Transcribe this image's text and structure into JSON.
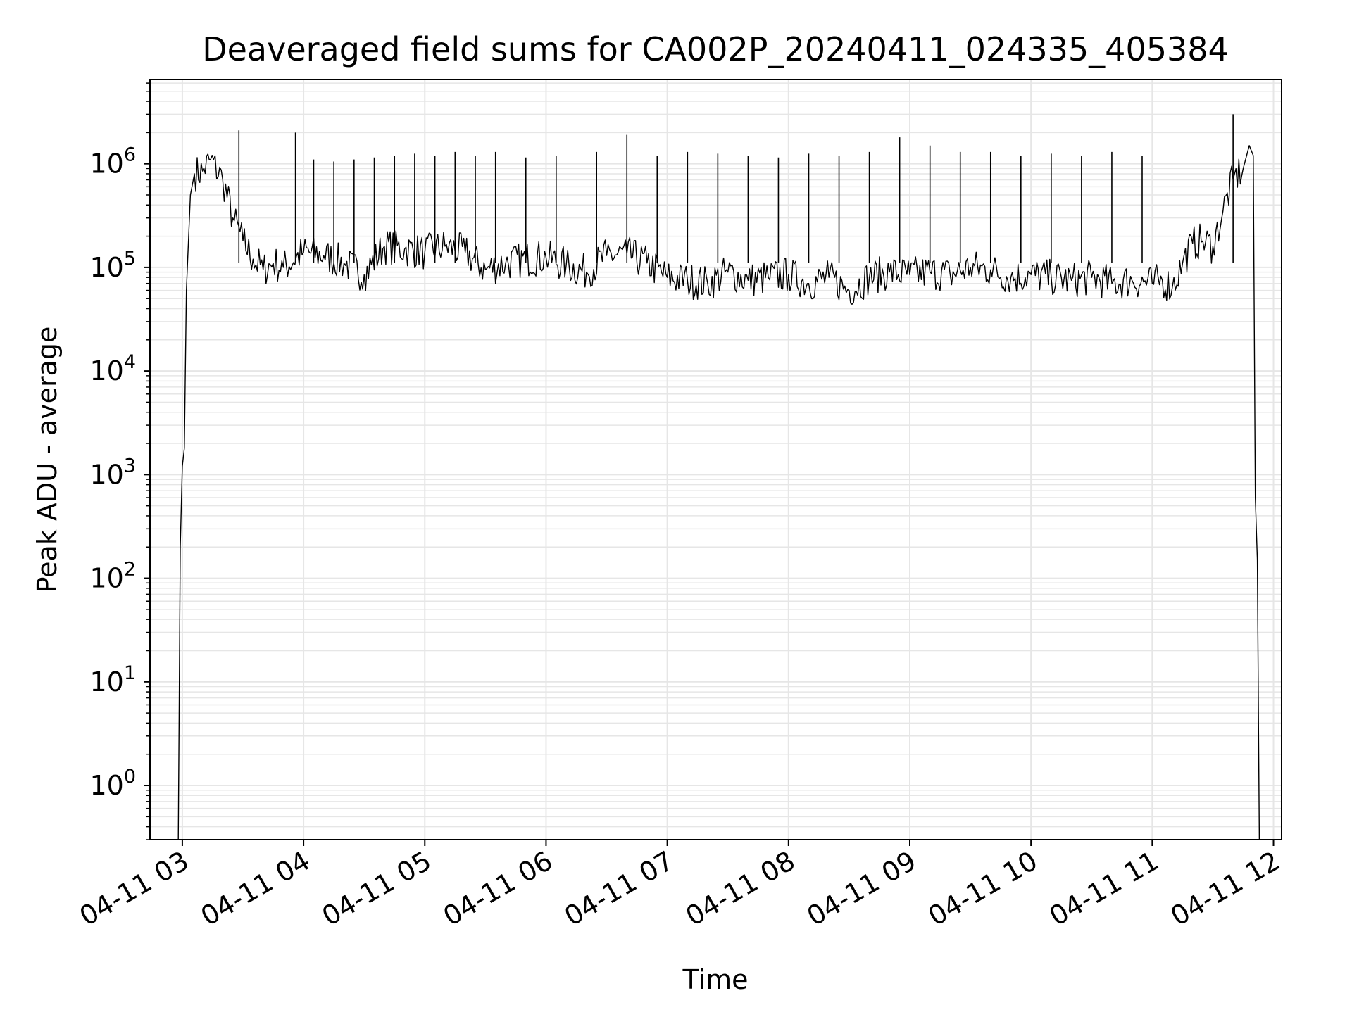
{
  "chart_data": {
    "type": "line",
    "title": "Deaveraged field sums for CA002P_20240411_024335_405384",
    "xlabel": "Time",
    "ylabel": "Peak ADU - average",
    "yscale": "log",
    "ylim": [
      0.3,
      6500000
    ],
    "xlim": [
      "2024-04-11 02:44",
      "2024-04-11 12:04"
    ],
    "grid": true,
    "x_tick_labels": [
      "04-11 03",
      "04-11 04",
      "04-11 05",
      "04-11 06",
      "04-11 07",
      "04-11 08",
      "04-11 09",
      "04-11 10",
      "04-11 11",
      "04-11 12"
    ],
    "y_tick_labels": [
      {
        "base": "10",
        "exp": "0"
      },
      {
        "base": "10",
        "exp": "1"
      },
      {
        "base": "10",
        "exp": "2"
      },
      {
        "base": "10",
        "exp": "3"
      },
      {
        "base": "10",
        "exp": "4"
      },
      {
        "base": "10",
        "exp": "5"
      },
      {
        "base": "10",
        "exp": "6"
      }
    ],
    "line_color": "#000000",
    "grid_color": "#e6e6e6",
    "series": [
      {
        "x": [
          "2024-04-11 02:58",
          "2024-04-11 02:59",
          "2024-04-11 03:00",
          "2024-04-11 03:01",
          "2024-04-11 03:02",
          "2024-04-11 03:04",
          "2024-04-11 03:06",
          "2024-04-11 03:10",
          "2024-04-11 03:14",
          "2024-04-11 03:20",
          "2024-04-11 03:25",
          "2024-04-11 03:30",
          "2024-04-11 03:35",
          "2024-04-11 03:40",
          "2024-04-11 03:45",
          "2024-04-11 03:50",
          "2024-04-11 04:00",
          "2024-04-11 04:10",
          "2024-04-11 04:20",
          "2024-04-11 04:30",
          "2024-04-11 04:40",
          "2024-04-11 04:50",
          "2024-04-11 05:00",
          "2024-04-11 05:10",
          "2024-04-11 05:20",
          "2024-04-11 05:30",
          "2024-04-11 05:40",
          "2024-04-11 05:50",
          "2024-04-11 06:00",
          "2024-04-11 06:10",
          "2024-04-11 06:20",
          "2024-04-11 06:30",
          "2024-04-11 06:40",
          "2024-04-11 06:50",
          "2024-04-11 07:00",
          "2024-04-11 07:10",
          "2024-04-11 07:20",
          "2024-04-11 07:30",
          "2024-04-11 07:40",
          "2024-04-11 07:50",
          "2024-04-11 08:00",
          "2024-04-11 08:10",
          "2024-04-11 08:20",
          "2024-04-11 08:30",
          "2024-04-11 08:40",
          "2024-04-11 08:50",
          "2024-04-11 09:00",
          "2024-04-11 09:10",
          "2024-04-11 09:20",
          "2024-04-11 09:30",
          "2024-04-11 09:40",
          "2024-04-11 09:50",
          "2024-04-11 10:00",
          "2024-04-11 10:10",
          "2024-04-11 10:20",
          "2024-04-11 10:30",
          "2024-04-11 10:40",
          "2024-04-11 10:50",
          "2024-04-11 11:00",
          "2024-04-11 11:05",
          "2024-04-11 11:10",
          "2024-04-11 11:15",
          "2024-04-11 11:20",
          "2024-04-11 11:25",
          "2024-04-11 11:30",
          "2024-04-11 11:35",
          "2024-04-11 11:40",
          "2024-04-11 11:45",
          "2024-04-11 11:48",
          "2024-04-11 11:50",
          "2024-04-11 11:51",
          "2024-04-11 11:52",
          "2024-04-11 11:53"
        ],
        "y": [
          0.3,
          200,
          1200,
          1800,
          60000,
          500000,
          800000,
          850000,
          1100000,
          700000,
          300000,
          180000,
          120000,
          95000,
          110000,
          100000,
          140000,
          130000,
          110000,
          85000,
          160000,
          150000,
          140000,
          160000,
          140000,
          95000,
          110000,
          120000,
          125000,
          105000,
          90000,
          130000,
          135000,
          110000,
          80000,
          75000,
          70000,
          90000,
          75000,
          80000,
          85000,
          70000,
          80000,
          60000,
          80000,
          90000,
          85000,
          90000,
          85000,
          100000,
          95000,
          80000,
          85000,
          80000,
          75000,
          80000,
          70000,
          75000,
          70000,
          75000,
          65000,
          110000,
          170000,
          180000,
          160000,
          350000,
          700000,
          900000,
          1500000,
          1200000,
          600,
          150,
          0.3
        ]
      }
    ],
    "spikes": [
      {
        "x": "2024-04-11 03:28",
        "y": 2100000
      },
      {
        "x": "2024-04-11 03:56",
        "y": 2000000
      },
      {
        "x": "2024-04-11 04:05",
        "y": 1100000
      },
      {
        "x": "2024-04-11 04:15",
        "y": 1050000
      },
      {
        "x": "2024-04-11 04:25",
        "y": 1100000
      },
      {
        "x": "2024-04-11 04:35",
        "y": 1150000
      },
      {
        "x": "2024-04-11 04:45",
        "y": 1200000
      },
      {
        "x": "2024-04-11 04:55",
        "y": 1250000
      },
      {
        "x": "2024-04-11 05:05",
        "y": 1200000
      },
      {
        "x": "2024-04-11 05:15",
        "y": 1300000
      },
      {
        "x": "2024-04-11 05:25",
        "y": 1200000
      },
      {
        "x": "2024-04-11 05:35",
        "y": 1300000
      },
      {
        "x": "2024-04-11 05:50",
        "y": 1150000
      },
      {
        "x": "2024-04-11 06:05",
        "y": 1200000
      },
      {
        "x": "2024-04-11 06:25",
        "y": 1300000
      },
      {
        "x": "2024-04-11 06:40",
        "y": 1900000
      },
      {
        "x": "2024-04-11 06:55",
        "y": 1200000
      },
      {
        "x": "2024-04-11 07:10",
        "y": 1300000
      },
      {
        "x": "2024-04-11 07:25",
        "y": 1250000
      },
      {
        "x": "2024-04-11 07:40",
        "y": 1200000
      },
      {
        "x": "2024-04-11 07:55",
        "y": 1150000
      },
      {
        "x": "2024-04-11 08:10",
        "y": 1250000
      },
      {
        "x": "2024-04-11 08:25",
        "y": 1200000
      },
      {
        "x": "2024-04-11 08:40",
        "y": 1300000
      },
      {
        "x": "2024-04-11 08:55",
        "y": 1800000
      },
      {
        "x": "2024-04-11 09:10",
        "y": 1500000
      },
      {
        "x": "2024-04-11 09:25",
        "y": 1300000
      },
      {
        "x": "2024-04-11 09:40",
        "y": 1300000
      },
      {
        "x": "2024-04-11 09:55",
        "y": 1200000
      },
      {
        "x": "2024-04-11 10:10",
        "y": 1250000
      },
      {
        "x": "2024-04-11 10:25",
        "y": 1200000
      },
      {
        "x": "2024-04-11 10:40",
        "y": 1300000
      },
      {
        "x": "2024-04-11 10:55",
        "y": 1200000
      },
      {
        "x": "2024-04-11 11:40",
        "y": 3000000
      }
    ]
  }
}
